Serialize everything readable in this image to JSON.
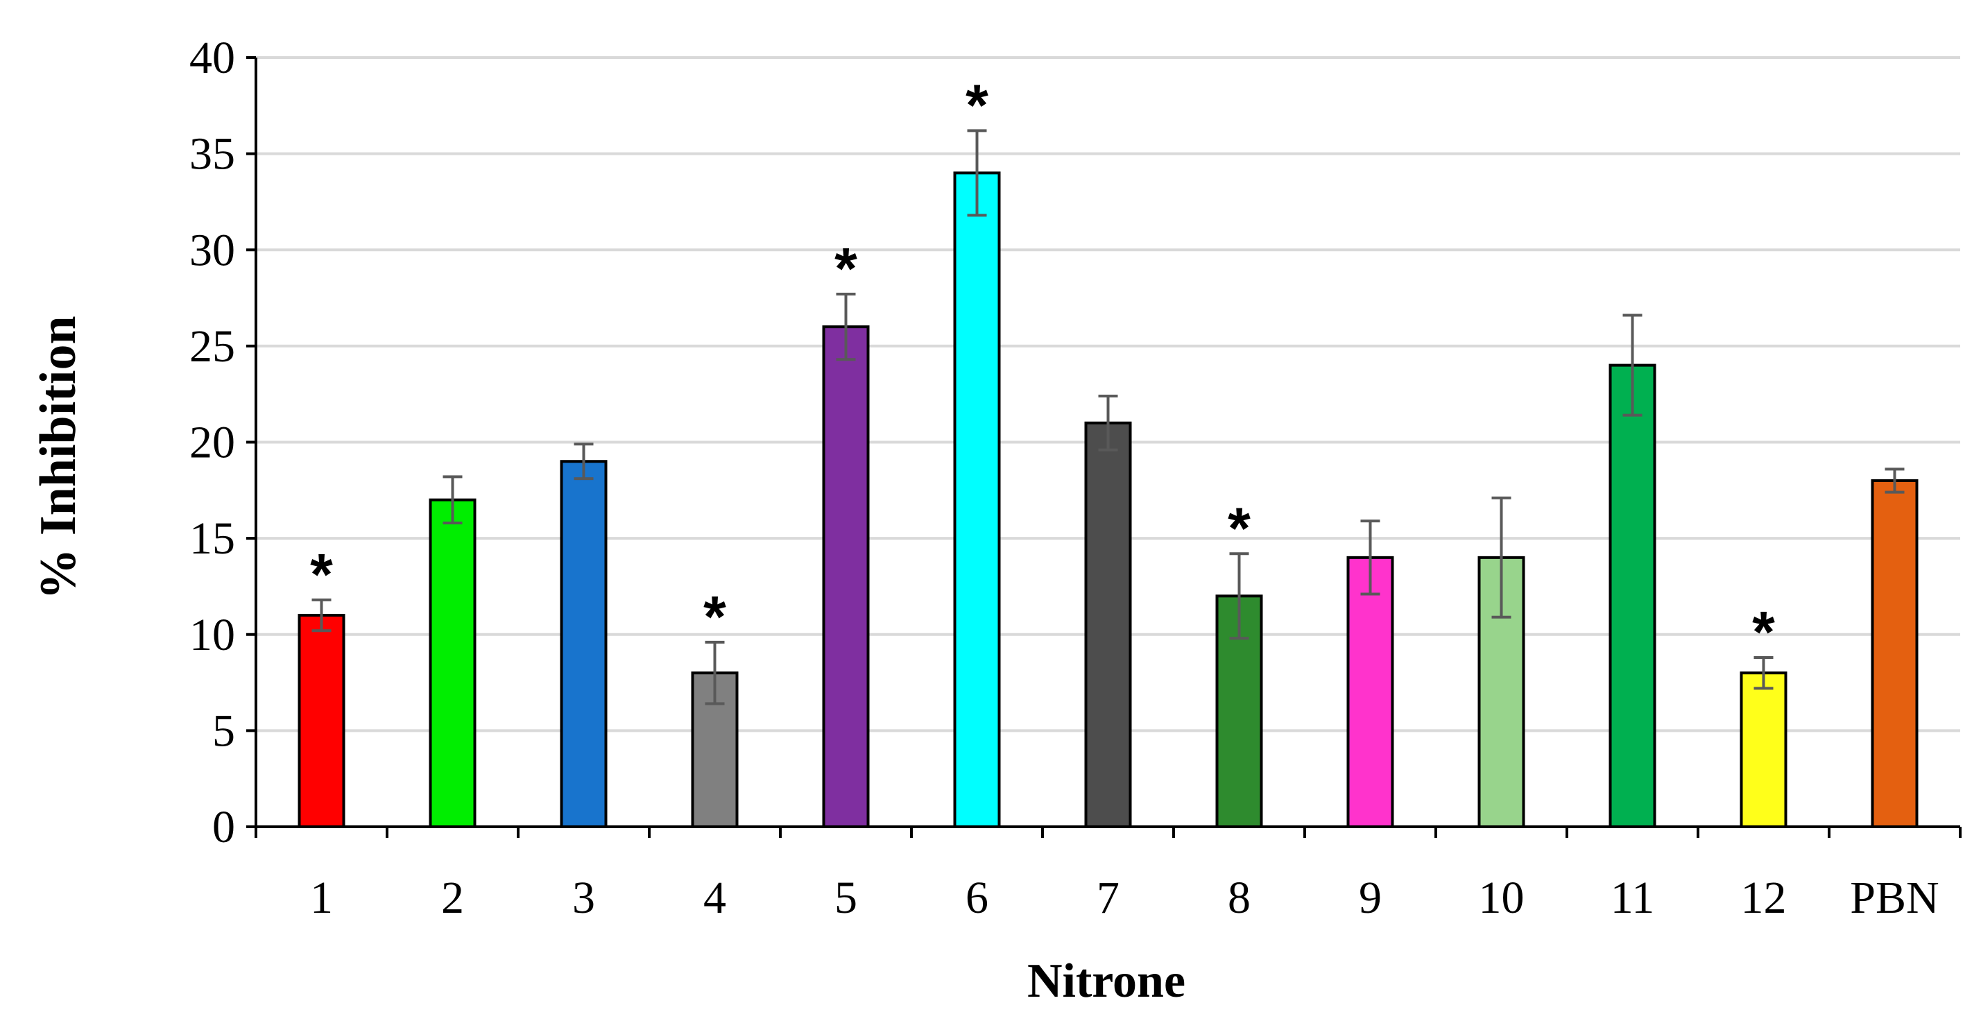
{
  "chart_data": {
    "type": "bar",
    "title": "",
    "xlabel": "Nitrone",
    "ylabel": "% Inhibition",
    "ylim": [
      0,
      40
    ],
    "yticks": [
      0,
      5,
      10,
      15,
      20,
      25,
      30,
      35,
      40
    ],
    "grid": true,
    "categories": [
      "1",
      "2",
      "3",
      "4",
      "5",
      "6",
      "7",
      "8",
      "9",
      "10",
      "11",
      "12",
      "PBN"
    ],
    "values": [
      11,
      17,
      19,
      8,
      26,
      34,
      21,
      12,
      14,
      14,
      24,
      8,
      18
    ],
    "errors": [
      0.8,
      1.2,
      0.9,
      1.6,
      1.7,
      2.2,
      1.4,
      2.2,
      1.9,
      3.1,
      2.6,
      0.8,
      0.6
    ],
    "significant_marker": "*",
    "significant": [
      true,
      false,
      false,
      true,
      true,
      true,
      false,
      true,
      false,
      false,
      false,
      true,
      false
    ],
    "colors": [
      "#ff0000",
      "#00ee00",
      "#1874cd",
      "#808080",
      "#7f2fa0",
      "#00ffff",
      "#4d4d4d",
      "#2e8b2e",
      "#ff33cc",
      "#98d48c",
      "#00b050",
      "#ffff1a",
      "#e46010"
    ]
  }
}
